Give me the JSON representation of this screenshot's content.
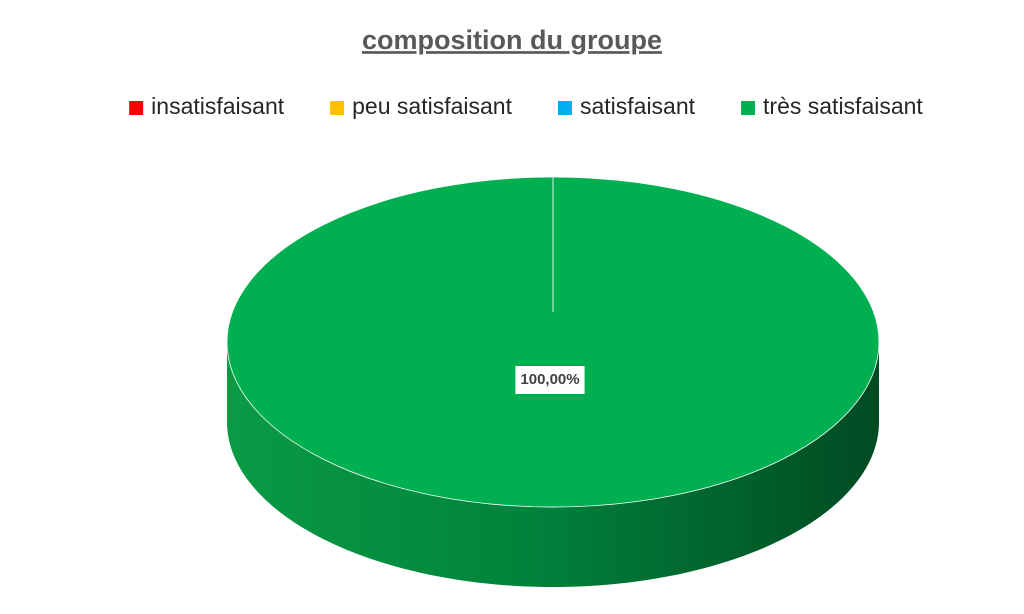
{
  "chart_data": {
    "type": "pie",
    "title": "composition du groupe",
    "categories": [
      "insatisfaisant",
      "peu satisfaisant",
      "satisfaisant",
      "très satisfaisant"
    ],
    "values": [
      0,
      0,
      0,
      100
    ],
    "value_labels": [
      null,
      null,
      null,
      "100,00%"
    ],
    "colors": [
      "#ff0000",
      "#ffc000",
      "#00b0f0",
      "#00b050"
    ],
    "legend": "top",
    "three_d": true
  }
}
